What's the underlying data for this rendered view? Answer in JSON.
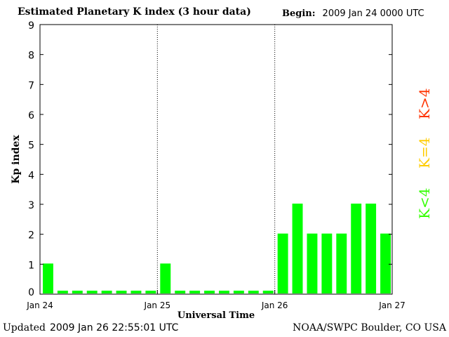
{
  "header": {
    "title": "Estimated Planetary K index (3 hour data)",
    "begin_label": "Begin:",
    "begin_value": "2009 Jan 24 0000 UTC"
  },
  "footer": {
    "updated_label": "Updated",
    "updated_value": "2009 Jan 26 22:55:01 UTC",
    "source": "NOAA/SWPC Boulder, CO USA"
  },
  "legend": {
    "high": {
      "text": "K>4",
      "color": "#ff3300"
    },
    "equal": {
      "text": "K=4",
      "color": "#ffcc00"
    },
    "low": {
      "text": "K<4",
      "color": "#33ff00"
    }
  },
  "colors": {
    "bar": "#00ff00",
    "axis": "#000000"
  },
  "chart_data": {
    "type": "bar",
    "xlabel": "Universal Time",
    "ylabel": "Kp index",
    "ylim": [
      0,
      9
    ],
    "yticks": [
      0,
      1,
      2,
      3,
      4,
      5,
      6,
      7,
      8,
      9
    ],
    "x_tick_labels": [
      "Jan 24",
      "Jan 25",
      "Jan 26",
      "Jan 27"
    ],
    "day_separators": [
      "Jan 25",
      "Jan 26"
    ],
    "interval_hours": 3,
    "values": [
      1,
      0,
      0,
      0,
      0,
      0,
      0,
      0,
      1,
      0,
      0,
      0,
      0,
      0,
      0,
      0,
      2,
      3,
      2,
      2,
      2,
      3,
      3,
      2
    ]
  }
}
